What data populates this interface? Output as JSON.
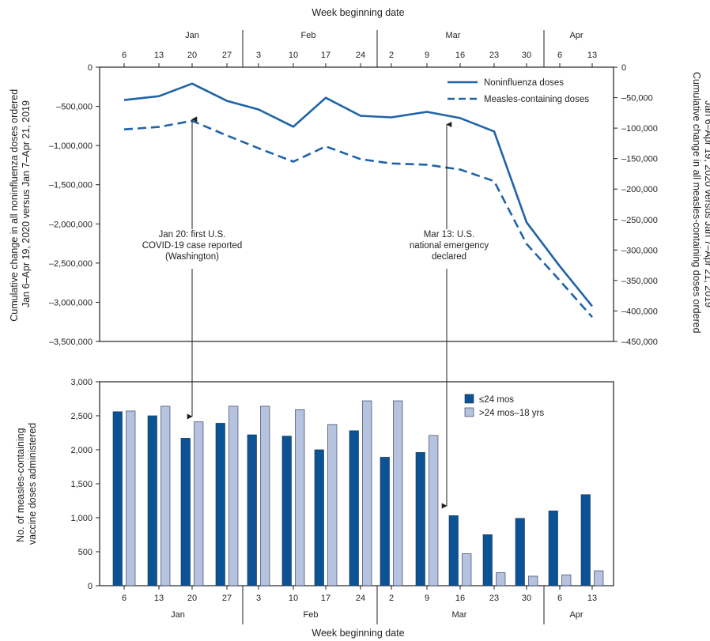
{
  "colors": {
    "line": "#1f63a8",
    "bar_le24": "#0b5395",
    "bar_gt24": "#b6c3df",
    "axis": "#231f20",
    "text": "#231f20"
  },
  "chart_data": [
    {
      "type": "line",
      "title": "",
      "x_axis_title": "Week beginning date",
      "months": [
        "Jan",
        "Feb",
        "Mar",
        "Apr"
      ],
      "weeks": [
        "6",
        "13",
        "20",
        "27",
        "3",
        "10",
        "17",
        "24",
        "2",
        "9",
        "16",
        "23",
        "30",
        "6",
        "13"
      ],
      "week_month": [
        "Jan",
        "Jan",
        "Jan",
        "Jan",
        "Feb",
        "Feb",
        "Feb",
        "Feb",
        "Mar",
        "Mar",
        "Mar",
        "Mar",
        "Mar",
        "Apr",
        "Apr"
      ],
      "ylabel_left": [
        "Cumulative change in all noninfluenza doses ordered",
        "Jan 6–Apr 19, 2020 versus Jan 7–Apr 21, 2019"
      ],
      "ylabel_right": [
        "Cumulative change in all measles-containing doses ordered",
        "Jan 6–Apr 19, 2020 versus Jan 7–Apr 21, 2019"
      ],
      "y_left": {
        "lim": [
          -3500000,
          0
        ],
        "ticks": [
          0,
          -500000,
          -1000000,
          -1500000,
          -2000000,
          -2500000,
          -3000000,
          -3500000
        ],
        "tick_labels": [
          "0",
          "–500,000",
          "–1,000,000",
          "–1,500,000",
          "–2,000,000",
          "–2,500,000",
          "–3,000,000",
          "–3,500,000"
        ]
      },
      "y_right": {
        "lim": [
          -450000,
          0
        ],
        "ticks": [
          0,
          -50000,
          -100000,
          -150000,
          -200000,
          -250000,
          -300000,
          -350000,
          -400000,
          -450000
        ],
        "tick_labels": [
          "0",
          "–50,000",
          "–100,000",
          "–150,000",
          "–200,000",
          "–250,000",
          "–300,000",
          "–350,000",
          "–400,000",
          "–450,000"
        ]
      },
      "series": [
        {
          "name": "Noninfluenza doses",
          "axis": "left",
          "style": "solid",
          "values": [
            -420000,
            -370000,
            -210000,
            -430000,
            -540000,
            -760000,
            -390000,
            -620000,
            -640000,
            -570000,
            -650000,
            -820000,
            -1980000,
            -2540000,
            -3050000
          ]
        },
        {
          "name": "Measles-containing doses",
          "axis": "right",
          "style": "dashed",
          "values": [
            -102000,
            -98000,
            -88000,
            -112000,
            -133000,
            -155000,
            -130000,
            -151000,
            -158000,
            -160000,
            -168000,
            -187000,
            -290000,
            -350000,
            -410000
          ]
        }
      ],
      "legend_position": "top-right",
      "annotations": [
        {
          "lines": [
            "Jan 20: first U.S.",
            "COVID-19 case reported",
            "(Washington)"
          ],
          "week_index": 2
        },
        {
          "lines": [
            "Mar 13: U.S.",
            "national emergency",
            "declared"
          ],
          "week_index": 10
        }
      ]
    },
    {
      "type": "bar",
      "title": "",
      "x_axis_title": "Week beginning date",
      "categories": [
        "6",
        "13",
        "20",
        "27",
        "3",
        "10",
        "17",
        "24",
        "2",
        "9",
        "16",
        "23",
        "30",
        "6",
        "13"
      ],
      "months": [
        "Jan",
        "Feb",
        "Mar",
        "Apr"
      ],
      "ylabel": [
        "No. of measles-containing",
        "vaccine doses administered"
      ],
      "ylim": [
        0,
        3000
      ],
      "y_ticks": [
        0,
        500,
        1000,
        1500,
        2000,
        2500,
        3000
      ],
      "y_tick_labels": [
        "0",
        "500",
        "1,000",
        "1,500",
        "2,000",
        "2,500",
        "3,000"
      ],
      "series": [
        {
          "name": "≤24 mos",
          "values": [
            2560,
            2500,
            2170,
            2390,
            2220,
            2200,
            2000,
            2280,
            1890,
            1960,
            1030,
            750,
            990,
            1100,
            1340
          ]
        },
        {
          "name": ">24 mos–18 yrs",
          "values": [
            2570,
            2640,
            2410,
            2640,
            2640,
            2590,
            2370,
            2720,
            2720,
            2210,
            470,
            190,
            140,
            160,
            220
          ]
        }
      ],
      "legend_position": "top-right"
    }
  ]
}
